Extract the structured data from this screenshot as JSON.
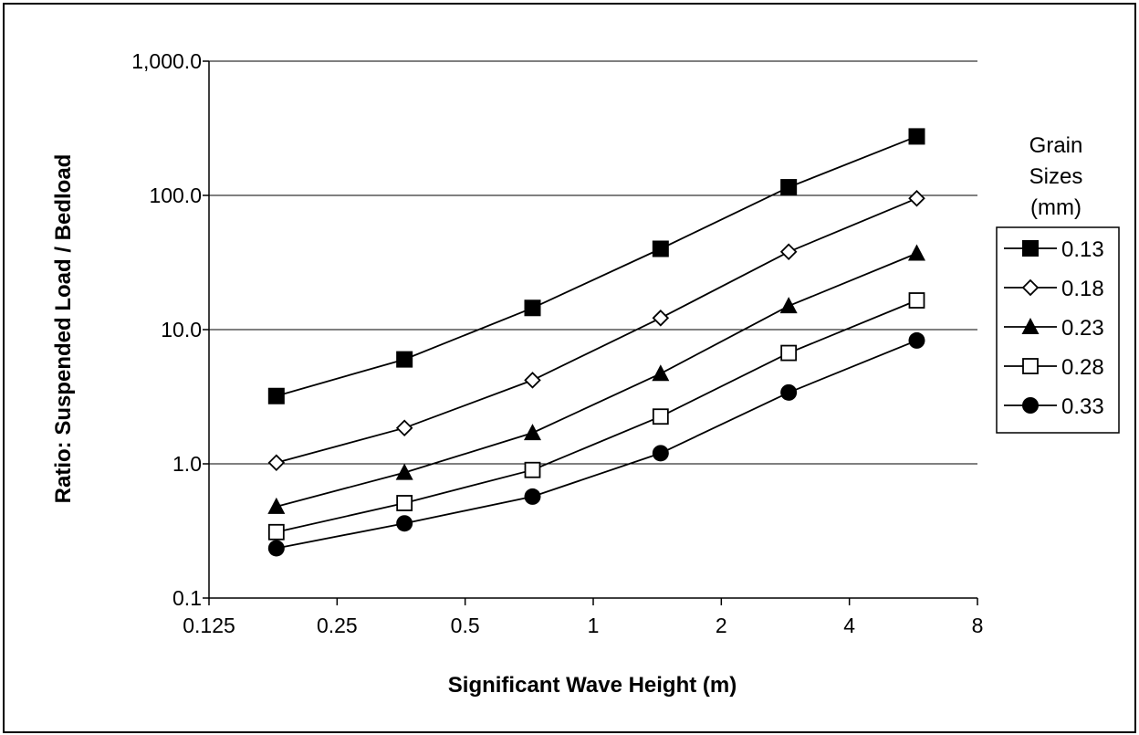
{
  "chart_data": {
    "type": "line",
    "title": "",
    "xlabel": "Significant Wave Height (m)",
    "ylabel": "Ratio:  Suspended Load / Bedload",
    "x_scale": "log2",
    "y_scale": "log10",
    "xlim": [
      0.125,
      8
    ],
    "ylim": [
      0.1,
      1000
    ],
    "x_ticks": [
      0.125,
      0.25,
      0.5,
      1,
      2,
      4,
      8
    ],
    "x_tick_labels": [
      "0.125",
      "0.25",
      "0.5",
      "1",
      "2",
      "4",
      "8"
    ],
    "y_ticks": [
      0.1,
      1,
      10,
      100,
      1000
    ],
    "y_tick_labels": [
      "0.1",
      "1.0",
      "10.0",
      "100.0",
      "1,000.0"
    ],
    "grid": "horizontal major lines",
    "legend_position": "right",
    "legend_title_lines": [
      "Grain",
      "Sizes",
      "(mm)"
    ],
    "x": [
      0.18,
      0.36,
      0.72,
      1.44,
      2.88,
      5.76
    ],
    "series": [
      {
        "name": "0.13",
        "marker": "filled-square",
        "values": [
          3.2,
          6.0,
          14.5,
          40,
          115,
          275
        ]
      },
      {
        "name": "0.18",
        "marker": "open-diamond",
        "values": [
          1.02,
          1.85,
          4.2,
          12.2,
          38,
          95
        ]
      },
      {
        "name": "0.23",
        "marker": "filled-triangle",
        "values": [
          0.48,
          0.86,
          1.7,
          4.7,
          15,
          37
        ]
      },
      {
        "name": "0.28",
        "marker": "open-square",
        "values": [
          0.31,
          0.51,
          0.9,
          2.25,
          6.7,
          16.5
        ]
      },
      {
        "name": "0.33",
        "marker": "filled-circle",
        "values": [
          0.235,
          0.36,
          0.57,
          1.2,
          3.4,
          8.3
        ]
      }
    ]
  }
}
